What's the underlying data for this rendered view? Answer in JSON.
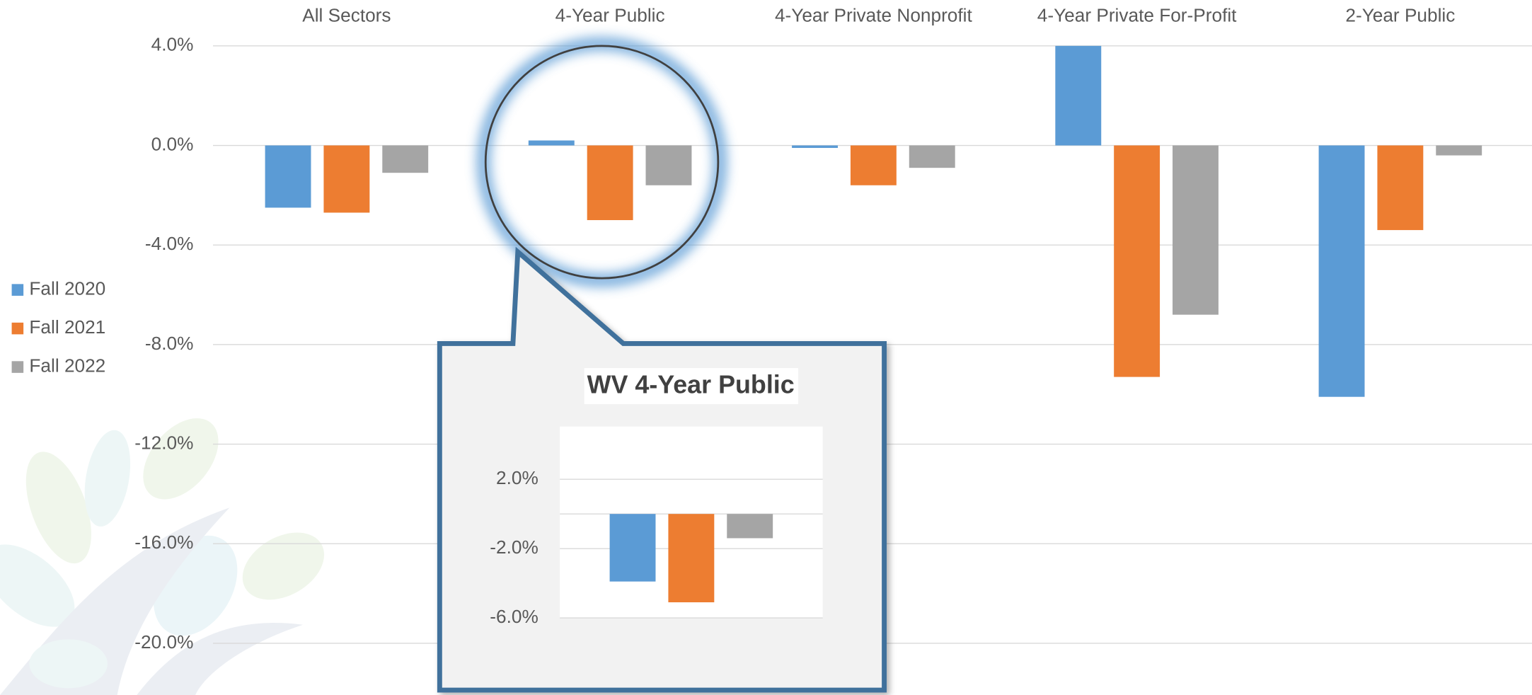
{
  "chart_data": [
    {
      "type": "bar",
      "categories": [
        "All Sectors",
        "4-Year Public",
        "4-Year Private Nonprofit",
        "4-Year Private For-Profit",
        "2-Year Public"
      ],
      "series": [
        {
          "name": "Fall 2020",
          "color": "#5b9bd5",
          "values": [
            -2.5,
            0.2,
            -0.1,
            4.0,
            -10.1
          ]
        },
        {
          "name": "Fall 2021",
          "color": "#ed7d31",
          "values": [
            -2.7,
            -3.0,
            -1.6,
            -9.3,
            -3.4
          ]
        },
        {
          "name": "Fall 2022",
          "color": "#a5a5a5",
          "values": [
            -1.1,
            -1.6,
            -0.9,
            -6.8,
            -0.4
          ]
        }
      ],
      "ylim": [
        -22,
        4
      ],
      "yticks": [
        {
          "value": 4,
          "label": "4.0%"
        },
        {
          "value": 0,
          "label": "0.0%"
        },
        {
          "value": -4,
          "label": "-4.0%"
        },
        {
          "value": -8,
          "label": "-8.0%"
        },
        {
          "value": -12,
          "label": "-12.0%"
        },
        {
          "value": -16,
          "label": "-16.0%"
        },
        {
          "value": -20,
          "label": "-20.0%"
        }
      ],
      "grid": true,
      "legend": "left"
    },
    {
      "type": "bar",
      "title": "WV 4-Year Public",
      "categories": [
        null
      ],
      "series": [
        {
          "color": "#5b9bd5",
          "values": [
            -3.9
          ]
        },
        {
          "color": "#ed7d31",
          "values": [
            -5.1
          ]
        },
        {
          "color": "#a5a5a5",
          "values": [
            -1.4
          ]
        }
      ],
      "ylim": [
        -6,
        5
      ],
      "yticks": [
        {
          "value": 2,
          "label": "2.0%"
        },
        {
          "value": -2,
          "label": "-2.0%"
        },
        {
          "value": -6,
          "label": "-6.0%"
        }
      ],
      "grid": true
    }
  ]
}
